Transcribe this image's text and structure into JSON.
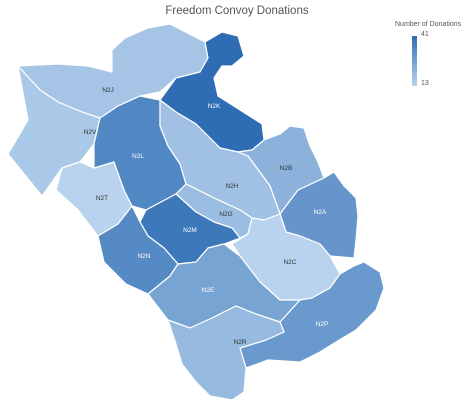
{
  "title": "Freedom Convoy Donations",
  "legend": {
    "title": "Number of Donations",
    "max": "41",
    "min": "13",
    "color_low": "#b9d3ee",
    "color_high": "#2e6db4"
  },
  "regions": [
    {
      "id": "N2J",
      "label": "N2J",
      "value": 17
    },
    {
      "id": "N2V",
      "label": "N2V",
      "value": 16
    },
    {
      "id": "N2K",
      "label": "N2K",
      "value": 41
    },
    {
      "id": "N2T",
      "label": "N2T",
      "value": 13
    },
    {
      "id": "N2L",
      "label": "N2L",
      "value": 34
    },
    {
      "id": "N2B",
      "label": "N2B",
      "value": 22
    },
    {
      "id": "N2H",
      "label": "N2H",
      "value": 18
    },
    {
      "id": "N2G",
      "label": "N2G",
      "value": 19
    },
    {
      "id": "N2M",
      "label": "N2M",
      "value": 38
    },
    {
      "id": "N2A",
      "label": "N2A",
      "value": 30
    },
    {
      "id": "N2N",
      "label": "N2N",
      "value": 33
    },
    {
      "id": "N2C",
      "label": "N2C",
      "value": 13
    },
    {
      "id": "N2E",
      "label": "N2E",
      "value": 26
    },
    {
      "id": "N2P",
      "label": "N2P",
      "value": 29
    },
    {
      "id": "N2R",
      "label": "N2R",
      "value": 20
    }
  ]
}
